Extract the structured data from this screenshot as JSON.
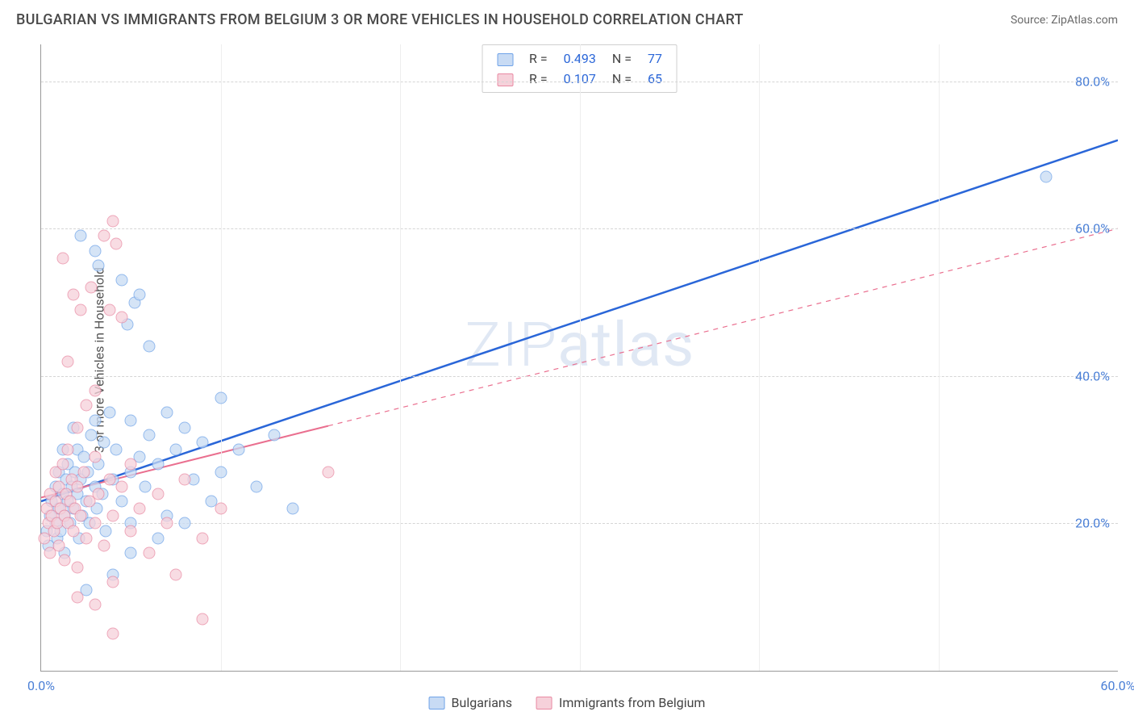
{
  "title": "BULGARIAN VS IMMIGRANTS FROM BELGIUM 3 OR MORE VEHICLES IN HOUSEHOLD CORRELATION CHART",
  "source": "Source: ZipAtlas.com",
  "watermark": "ZIPatlas",
  "ylabel": "3 or more Vehicles in Household",
  "chart": {
    "type": "scatter",
    "background_color": "#ffffff",
    "grid_color": "#d5d5d5",
    "axis_color": "#999999",
    "label_fontsize": 16,
    "tick_fontsize": 16,
    "tick_color": "#4a7fd6",
    "xlim": [
      0,
      60
    ],
    "ylim": [
      0,
      85
    ],
    "xticks": [
      {
        "v": 0,
        "label": "0.0%"
      },
      {
        "v": 60,
        "label": "60.0%"
      }
    ],
    "xgrid_minor": [
      10,
      20,
      30,
      40,
      50
    ],
    "yticks": [
      {
        "v": 20,
        "label": "20.0%"
      },
      {
        "v": 40,
        "label": "40.0%"
      },
      {
        "v": 60,
        "label": "60.0%"
      },
      {
        "v": 80,
        "label": "80.0%"
      }
    ],
    "series": [
      {
        "key": "bulgarians",
        "label": "Bulgarians",
        "R": "0.493",
        "N": "77",
        "marker_color_fill": "#c8dbf4",
        "marker_color_stroke": "#6fa3e8",
        "line_color": "#2a66d8",
        "line_width": 2.5,
        "line_dash": "none",
        "trend": {
          "x1": 0,
          "y1": 23,
          "x2": 60,
          "y2": 72,
          "solid_until_x": 60
        },
        "points": [
          [
            0.3,
            19
          ],
          [
            0.4,
            17
          ],
          [
            0.5,
            21
          ],
          [
            0.6,
            23
          ],
          [
            0.8,
            20
          ],
          [
            0.8,
            25
          ],
          [
            0.9,
            18
          ],
          [
            1.0,
            22
          ],
          [
            1.0,
            27
          ],
          [
            1.1,
            19
          ],
          [
            1.2,
            24
          ],
          [
            1.2,
            30
          ],
          [
            1.3,
            21
          ],
          [
            1.3,
            16
          ],
          [
            1.4,
            26
          ],
          [
            1.5,
            23
          ],
          [
            1.5,
            28
          ],
          [
            1.6,
            20
          ],
          [
            1.7,
            25
          ],
          [
            1.8,
            22
          ],
          [
            1.8,
            33
          ],
          [
            1.9,
            27
          ],
          [
            2.0,
            24
          ],
          [
            2.0,
            30
          ],
          [
            2.1,
            18
          ],
          [
            2.2,
            26
          ],
          [
            2.3,
            21
          ],
          [
            2.4,
            29
          ],
          [
            2.5,
            23
          ],
          [
            2.6,
            27
          ],
          [
            2.7,
            20
          ],
          [
            2.8,
            32
          ],
          [
            3.0,
            25
          ],
          [
            3.0,
            34
          ],
          [
            3.1,
            22
          ],
          [
            3.2,
            28
          ],
          [
            3.4,
            24
          ],
          [
            3.5,
            31
          ],
          [
            3.6,
            19
          ],
          [
            3.8,
            35
          ],
          [
            4.0,
            26
          ],
          [
            4.0,
            13
          ],
          [
            4.2,
            30
          ],
          [
            4.5,
            23
          ],
          [
            4.8,
            47
          ],
          [
            5.0,
            27
          ],
          [
            5.0,
            34
          ],
          [
            5.2,
            50
          ],
          [
            5.5,
            29
          ],
          [
            5.5,
            51
          ],
          [
            5.8,
            25
          ],
          [
            6.0,
            32
          ],
          [
            6.0,
            44
          ],
          [
            6.5,
            28
          ],
          [
            7.0,
            35
          ],
          [
            7.0,
            21
          ],
          [
            7.5,
            30
          ],
          [
            8.0,
            33
          ],
          [
            8.0,
            20
          ],
          [
            8.5,
            26
          ],
          [
            9.0,
            31
          ],
          [
            9.5,
            23
          ],
          [
            10.0,
            37
          ],
          [
            10.0,
            27
          ],
          [
            11.0,
            30
          ],
          [
            12.0,
            25
          ],
          [
            13.0,
            32
          ],
          [
            14.0,
            22
          ],
          [
            5.0,
            16
          ],
          [
            6.5,
            18
          ],
          [
            2.5,
            11
          ],
          [
            3.0,
            57
          ],
          [
            3.2,
            55
          ],
          [
            4.5,
            53
          ],
          [
            2.2,
            59
          ],
          [
            56.0,
            67
          ],
          [
            5.0,
            20
          ]
        ]
      },
      {
        "key": "belgium",
        "label": "Immigrants from Belgium",
        "R": "0.107",
        "N": "65",
        "marker_color_fill": "#f6d1da",
        "marker_color_stroke": "#e98aa3",
        "line_color": "#ea6f8f",
        "line_width": 2,
        "line_dash": "dashed",
        "trend": {
          "x1": 0,
          "y1": 23.5,
          "x2": 60,
          "y2": 60,
          "solid_until_x": 16
        },
        "points": [
          [
            0.2,
            18
          ],
          [
            0.3,
            22
          ],
          [
            0.4,
            20
          ],
          [
            0.5,
            24
          ],
          [
            0.5,
            16
          ],
          [
            0.6,
            21
          ],
          [
            0.7,
            19
          ],
          [
            0.8,
            23
          ],
          [
            0.8,
            27
          ],
          [
            0.9,
            20
          ],
          [
            1.0,
            25
          ],
          [
            1.0,
            17
          ],
          [
            1.1,
            22
          ],
          [
            1.2,
            28
          ],
          [
            1.3,
            21
          ],
          [
            1.3,
            15
          ],
          [
            1.4,
            24
          ],
          [
            1.5,
            20
          ],
          [
            1.5,
            30
          ],
          [
            1.6,
            23
          ],
          [
            1.7,
            26
          ],
          [
            1.8,
            19
          ],
          [
            1.9,
            22
          ],
          [
            2.0,
            25
          ],
          [
            2.0,
            14
          ],
          [
            2.2,
            21
          ],
          [
            2.4,
            27
          ],
          [
            2.5,
            18
          ],
          [
            2.7,
            23
          ],
          [
            3.0,
            20
          ],
          [
            3.0,
            29
          ],
          [
            3.2,
            24
          ],
          [
            3.5,
            17
          ],
          [
            3.8,
            26
          ],
          [
            4.0,
            21
          ],
          [
            4.0,
            12
          ],
          [
            4.5,
            25
          ],
          [
            5.0,
            19
          ],
          [
            5.0,
            28
          ],
          [
            5.5,
            22
          ],
          [
            6.0,
            16
          ],
          [
            6.5,
            24
          ],
          [
            7.0,
            20
          ],
          [
            7.5,
            13
          ],
          [
            8.0,
            26
          ],
          [
            9.0,
            18
          ],
          [
            9.0,
            7
          ],
          [
            10.0,
            22
          ],
          [
            2.0,
            33
          ],
          [
            2.5,
            36
          ],
          [
            3.0,
            38
          ],
          [
            1.5,
            42
          ],
          [
            2.2,
            49
          ],
          [
            3.8,
            49
          ],
          [
            4.5,
            48
          ],
          [
            1.8,
            51
          ],
          [
            2.8,
            52
          ],
          [
            1.2,
            56
          ],
          [
            3.5,
            59
          ],
          [
            4.2,
            58
          ],
          [
            4.0,
            61
          ],
          [
            2.0,
            10
          ],
          [
            3.0,
            9
          ],
          [
            4.0,
            5
          ],
          [
            16.0,
            27
          ]
        ]
      }
    ]
  },
  "legend_top": {
    "r_label": "R =",
    "n_label": "N =",
    "value_color": "#2a66d8",
    "text_color": "#444444"
  }
}
